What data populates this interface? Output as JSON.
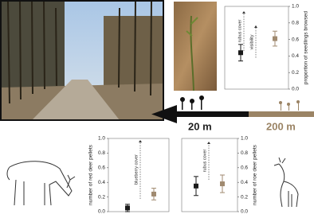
{
  "chart_data": [
    {
      "type": "errorbar",
      "axis_side": "right",
      "ylabel": "proportion of seedlings browsed",
      "values": [
        0.44,
        0.61
      ],
      "errors": [
        0.1,
        0.09
      ],
      "colors": [
        "#1a1a1a",
        "#a08a70"
      ],
      "ylim": [
        0,
        1
      ],
      "yticks": [
        {
          "value": 0,
          "label": "0.0"
        },
        {
          "value": 0.2,
          "label": "0.2"
        },
        {
          "value": 0.4,
          "label": "0.4"
        },
        {
          "value": 0.6,
          "label": "0.6"
        },
        {
          "value": 0.8,
          "label": "0.8"
        },
        {
          "value": 1,
          "label": "1.0"
        }
      ],
      "annotations": [
        "rubus cover",
        "visibility"
      ]
    },
    {
      "type": "errorbar",
      "axis_side": "left",
      "ylabel": "number of red deer pellets",
      "values": [
        0.05,
        0.24
      ],
      "errors": [
        0.05,
        0.08
      ],
      "colors": [
        "#1a1a1a",
        "#a08a70"
      ],
      "ylim": [
        0,
        1
      ],
      "yticks": [
        {
          "value": 0,
          "label": "0.0"
        },
        {
          "value": 0.2,
          "label": "0.2"
        },
        {
          "value": 0.4,
          "label": "0.4"
        },
        {
          "value": 0.6,
          "label": "0.6"
        },
        {
          "value": 0.8,
          "label": "0.8"
        },
        {
          "value": 1,
          "label": "1.0"
        }
      ],
      "annotations": [
        "blueberry cover"
      ]
    },
    {
      "type": "errorbar",
      "axis_side": "right",
      "ylabel": "number of roe deer pellets",
      "values": [
        0.35,
        0.38
      ],
      "errors": [
        0.13,
        0.12
      ],
      "colors": [
        "#1a1a1a",
        "#a08a70"
      ],
      "ylim": [
        0,
        1
      ],
      "yticks": [
        {
          "value": 0,
          "label": "0.0"
        },
        {
          "value": 0.2,
          "label": "0.2"
        },
        {
          "value": 0.4,
          "label": "0.4"
        },
        {
          "value": 0.6,
          "label": "0.6"
        },
        {
          "value": 0.8,
          "label": "0.8"
        },
        {
          "value": 1,
          "label": "1.0"
        }
      ],
      "annotations": [
        "rubus cover"
      ]
    }
  ],
  "distances": {
    "near": "20 m",
    "far": "200 m"
  }
}
